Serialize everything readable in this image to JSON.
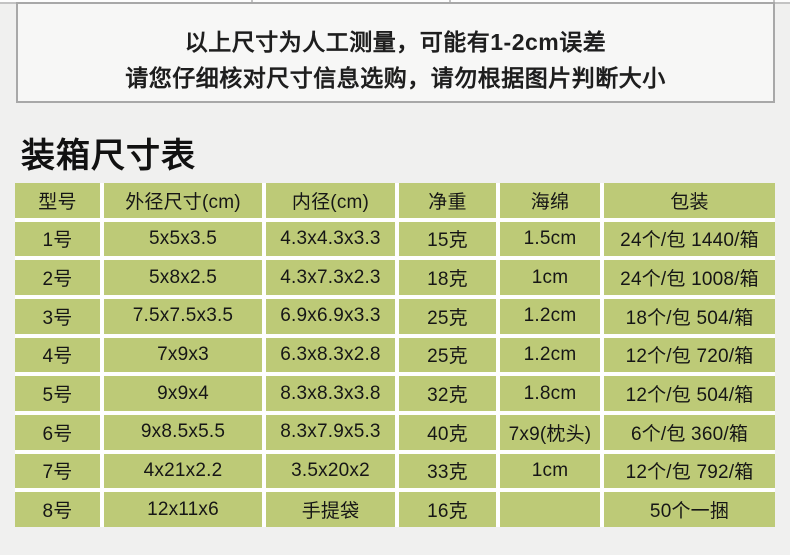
{
  "notice": {
    "line1": "以上尺寸为人工测量，可能有1-2cm误差",
    "line2": "请您仔细核对尺寸信息选购，请勿根据图片判断大小"
  },
  "section_title": "装箱尺寸表",
  "table": {
    "headers": [
      "型号",
      "外径尺寸(cm)",
      "内径(cm)",
      "净重",
      "海绵",
      "包装"
    ],
    "rows": [
      [
        "1号",
        "5x5x3.5",
        "4.3x4.3x3.3",
        "15克",
        "1.5cm",
        "24个/包 1440/箱"
      ],
      [
        "2号",
        "5x8x2.5",
        "4.3x7.3x2.3",
        "18克",
        "1cm",
        "24个/包 1008/箱"
      ],
      [
        "3号",
        "7.5x7.5x3.5",
        "6.9x6.9x3.3",
        "25克",
        "1.2cm",
        "18个/包 504/箱"
      ],
      [
        "4号",
        "7x9x3",
        "6.3x8.3x2.8",
        "25克",
        "1.2cm",
        "12个/包 720/箱"
      ],
      [
        "5号",
        "9x9x4",
        "8.3x8.3x3.8",
        "32克",
        "1.8cm",
        "12个/包 504/箱"
      ],
      [
        "6号",
        "9x8.5x5.5",
        "8.3x7.9x5.3",
        "40克",
        "7x9(枕头)",
        "6个/包 360/箱"
      ],
      [
        "7号",
        "4x21x2.2",
        "3.5x20x2",
        "33克",
        "1cm",
        "12个/包 792/箱"
      ],
      [
        "8号",
        "12x11x6",
        "手提袋",
        "16克",
        "",
        "50个一捆"
      ]
    ]
  },
  "colors": {
    "table_green": "#bdca77",
    "page_background": "#f0f0ef",
    "cell_divider": "#ffffff",
    "notice_border": "#a8a8a8",
    "notice_background": "#f7f7f6",
    "text": "#161616"
  }
}
